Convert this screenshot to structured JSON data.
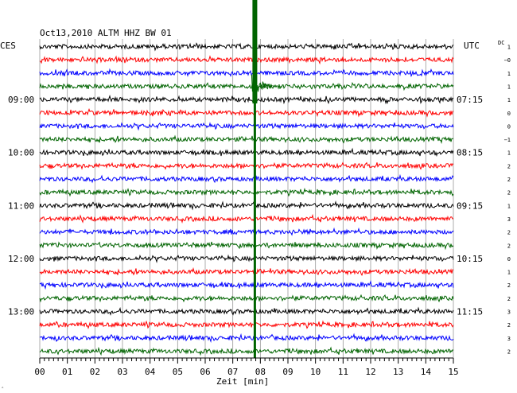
{
  "chart_data": {
    "type": "line",
    "title": "Oct13,2010  ALTM HHZ BW 01",
    "left_label": "CES",
    "right_label": "UTC",
    "dc_label": "DC",
    "xlabel": "Zeit [min]",
    "xlim": [
      0,
      15
    ],
    "x_ticks": [
      "00",
      "01",
      "02",
      "03",
      "04",
      "05",
      "06",
      "07",
      "08",
      "09",
      "10",
      "11",
      "12",
      "13",
      "14",
      "15"
    ],
    "trace_count": 24,
    "trace_colors": [
      "#000000",
      "#ff0000",
      "#0000ff",
      "#006400"
    ],
    "left_hour_labels": [
      {
        "trace": 4,
        "text": "09:00"
      },
      {
        "trace": 8,
        "text": "10:00"
      },
      {
        "trace": 12,
        "text": "11:00"
      },
      {
        "trace": 16,
        "text": "12:00"
      },
      {
        "trace": 20,
        "text": "13:00"
      }
    ],
    "right_hour_labels": [
      {
        "trace": 4,
        "text": "07:15"
      },
      {
        "trace": 8,
        "text": "08:15"
      },
      {
        "trace": 12,
        "text": "09:15"
      },
      {
        "trace": 16,
        "text": "10:15"
      },
      {
        "trace": 20,
        "text": "11:15"
      }
    ],
    "dc_values": [
      "1",
      "−0",
      "1",
      "1",
      "1",
      "0",
      "0",
      "−1",
      "1",
      "2",
      "2",
      "2",
      "1",
      "3",
      "2",
      "2",
      "0",
      "1",
      "2",
      "2",
      "3",
      "2",
      "3",
      "2"
    ],
    "event_minute": 7.8,
    "corner_mark": "‸"
  }
}
